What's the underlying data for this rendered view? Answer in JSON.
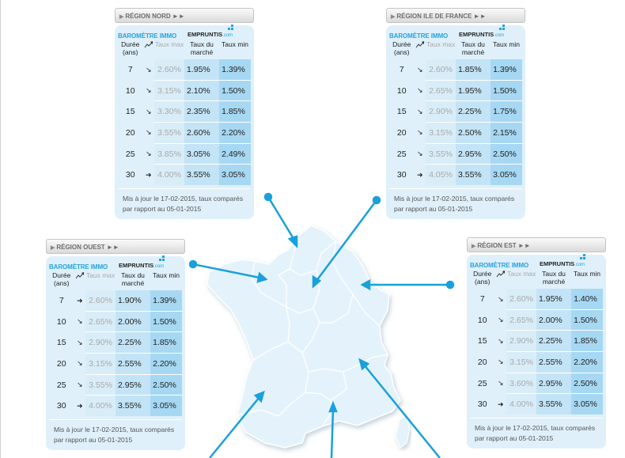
{
  "columns": {
    "duree": "Durée (ans)",
    "trend_icon": "trend-chart-icon",
    "taux_max": "Taux max",
    "taux_marche": "Taux du marché",
    "taux_min": "Taux min"
  },
  "brand": {
    "barometre": "BAROMÈTRE IMMO",
    "logo": "EMPRUNTIS",
    "logo_suffix": ".com"
  },
  "colors": {
    "accent": "#26a3dc",
    "map_fill": "#e4f3fb",
    "arrow": "#1aa0db"
  },
  "panels": {
    "nord": {
      "title": "RÉGION NORD ►►",
      "note": "Mis à jour le 17-02-2015, taux comparés par rapport au 05-01-2015",
      "rows": [
        {
          "duree": "7",
          "trend": "↘",
          "max": "2.60%",
          "marche": "1.95%",
          "min": "1.39%"
        },
        {
          "duree": "10",
          "trend": "↘",
          "max": "3.15%",
          "marche": "2.10%",
          "min": "1.50%"
        },
        {
          "duree": "15",
          "trend": "↘",
          "max": "3.30%",
          "marche": "2.35%",
          "min": "1.85%"
        },
        {
          "duree": "20",
          "trend": "↘",
          "max": "3.55%",
          "marche": "2.60%",
          "min": "2.20%"
        },
        {
          "duree": "25",
          "trend": "↘",
          "max": "3.85%",
          "marche": "3.05%",
          "min": "2.49%"
        },
        {
          "duree": "30",
          "trend": "➜",
          "max": "4.00%",
          "marche": "3.55%",
          "min": "3.05%"
        }
      ]
    },
    "idf": {
      "title": "RÉGION ILE DE FRANCE ►►",
      "note": "Mis à jour le 17-02-2015, taux comparés par rapport au 05-01-2015",
      "rows": [
        {
          "duree": "7",
          "trend": "↘",
          "max": "2.60%",
          "marche": "1.85%",
          "min": "1.39%"
        },
        {
          "duree": "10",
          "trend": "↘",
          "max": "2.65%",
          "marche": "1.95%",
          "min": "1.50%"
        },
        {
          "duree": "15",
          "trend": "↘",
          "max": "2.90%",
          "marche": "2.25%",
          "min": "1.75%"
        },
        {
          "duree": "20",
          "trend": "↘",
          "max": "3.15%",
          "marche": "2.50%",
          "min": "2.15%"
        },
        {
          "duree": "25",
          "trend": "↘",
          "max": "3.55%",
          "marche": "2.95%",
          "min": "2.50%"
        },
        {
          "duree": "30",
          "trend": "➜",
          "max": "4.05%",
          "marche": "3.55%",
          "min": "3.05%"
        }
      ]
    },
    "ouest": {
      "title": "RÉGION OUEST ►►",
      "note": "Mis à jour le 17-02-2015, taux comparés par rapport au 05-01-2015",
      "rows": [
        {
          "duree": "7",
          "trend": "➜",
          "max": "2.60%",
          "marche": "1.90%",
          "min": "1.39%"
        },
        {
          "duree": "10",
          "trend": "↘",
          "max": "2.65%",
          "marche": "2.00%",
          "min": "1.50%"
        },
        {
          "duree": "15",
          "trend": "↘",
          "max": "2.90%",
          "marche": "2.25%",
          "min": "1.85%"
        },
        {
          "duree": "20",
          "trend": "↘",
          "max": "3.15%",
          "marche": "2.55%",
          "min": "2.20%"
        },
        {
          "duree": "25",
          "trend": "↘",
          "max": "3.55%",
          "marche": "2.95%",
          "min": "2.50%"
        },
        {
          "duree": "30",
          "trend": "➜",
          "max": "4.00%",
          "marche": "3.55%",
          "min": "3.05%"
        }
      ]
    },
    "est": {
      "title": "RÉGION EST ►►",
      "note": "Mis à jour le 17-02-2015, taux comparés par rapport au 05-01-2015",
      "rows": [
        {
          "duree": "7",
          "trend": "↘",
          "max": "2.60%",
          "marche": "1.95%",
          "min": "1.40%"
        },
        {
          "duree": "10",
          "trend": "↘",
          "max": "2.65%",
          "marche": "2.00%",
          "min": "1.50%"
        },
        {
          "duree": "15",
          "trend": "↘",
          "max": "2.90%",
          "marche": "2.25%",
          "min": "1.85%"
        },
        {
          "duree": "20",
          "trend": "↘",
          "max": "3.15%",
          "marche": "2.55%",
          "min": "2.20%"
        },
        {
          "duree": "25",
          "trend": "↘",
          "max": "3.60%",
          "marche": "2.95%",
          "min": "2.50%"
        },
        {
          "duree": "30",
          "trend": "➜",
          "max": "4.00%",
          "marche": "3.55%",
          "min": "3.05%"
        }
      ]
    }
  }
}
